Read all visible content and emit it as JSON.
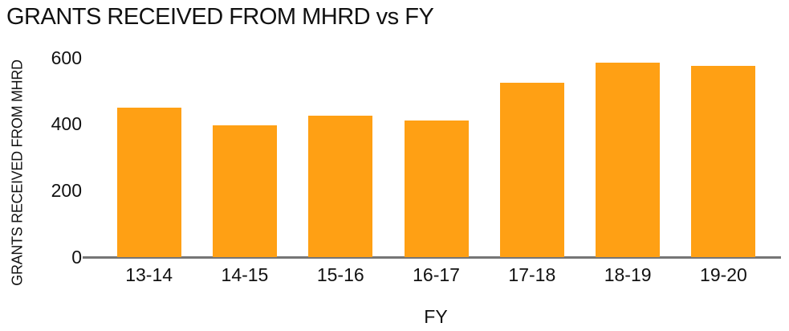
{
  "chart_data": {
    "type": "bar",
    "title": "GRANTS RECEIVED FROM MHRD vs FY",
    "xlabel": "FY",
    "ylabel": "GRANTS RECEIVED FROM MHRD",
    "categories": [
      "13-14",
      "14-15",
      "15-16",
      "16-17",
      "17-18",
      "18-19",
      "19-20"
    ],
    "values": [
      450,
      395,
      425,
      410,
      525,
      585,
      575
    ],
    "ylim": [
      0,
      600
    ],
    "yticks": [
      0,
      200,
      400,
      600
    ],
    "grid": false,
    "legend": "none",
    "bar_color": "#FFA014",
    "axis_line_color": "#757575",
    "text_color": "#111111"
  }
}
